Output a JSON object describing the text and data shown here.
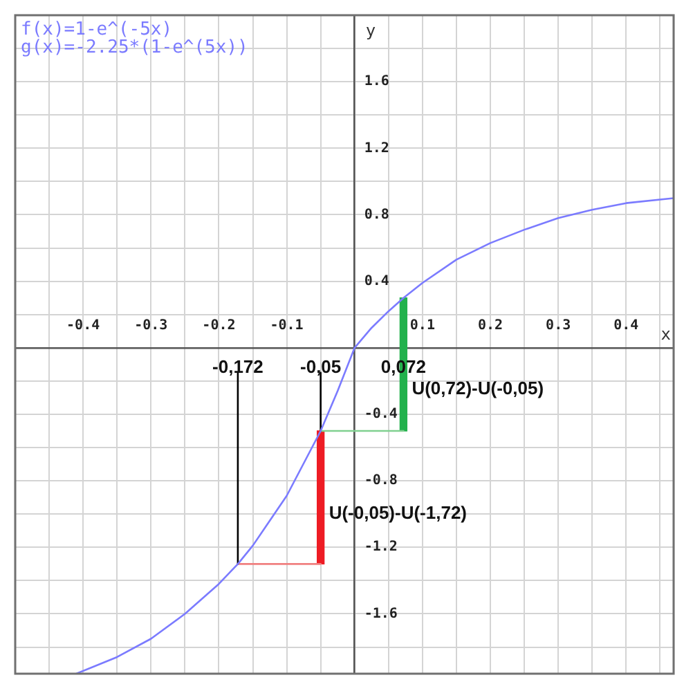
{
  "chart_data": {
    "type": "line",
    "xlabel": "x",
    "ylabel": "y",
    "annotations": [
      "f(x)=1-e^(-5x)",
      "g(x)=-2.25*(1-e^(5x))",
      {
        "text": "-0,172",
        "x": -0.172,
        "y": -0.12
      },
      {
        "text": "-0,05",
        "x": -0.05,
        "y": -0.12
      },
      {
        "text": "0,072",
        "x": 0.072,
        "y": -0.12
      },
      {
        "text": "U(0,72)-U(-0,05)",
        "x": 0.072,
        "y": -0.25
      },
      {
        "text": "U(-0,05)-U(-1,72)",
        "x": -0.05,
        "y": -1.0
      }
    ],
    "series": [
      {
        "color": "#7b7bff",
        "x": [
          -0.41,
          -0.35,
          -0.3,
          -0.25,
          -0.2,
          -0.172,
          -0.15,
          -0.1,
          -0.05,
          -0.025,
          0,
          0.025,
          0.05,
          0.072,
          0.1,
          0.15,
          0.2,
          0.25,
          0.3,
          0.35,
          0.4,
          0.47
        ],
        "values": [
          -1.96,
          -1.86,
          -1.75,
          -1.6,
          -1.42,
          -1.3,
          -1.19,
          -0.89,
          -0.5,
          -0.26,
          0,
          0.12,
          0.22,
          0.3,
          0.39,
          0.53,
          0.63,
          0.71,
          0.78,
          0.83,
          0.87,
          0.9
        ]
      },
      {
        "color": "#000000",
        "x": [
          -0.172,
          -0.172
        ],
        "values": [
          -0.15,
          -1.3
        ]
      },
      {
        "color": "#000000",
        "x": [
          -0.05,
          -0.05
        ],
        "values": [
          -0.15,
          -0.5
        ]
      },
      {
        "color": "#f08080",
        "x": [
          -0.172,
          -0.05
        ],
        "values": [
          -1.3,
          -1.3
        ]
      },
      {
        "color": "#80d090",
        "x": [
          -0.05,
          0.072
        ],
        "values": [
          -0.5,
          -0.5
        ]
      },
      {
        "type": "bar",
        "color": "#ee1c24",
        "x": [
          -0.05
        ],
        "base": [
          -1.3
        ],
        "values": [
          0.8
        ]
      },
      {
        "type": "bar",
        "color": "#22b14c",
        "x": [
          0.072
        ],
        "base": [
          -0.5
        ],
        "values": [
          0.8
        ]
      }
    ],
    "xlim": [
      -0.5,
      0.47
    ],
    "ylim": [
      -1.96,
      2.0
    ],
    "xticks": [
      {
        "value": -0.5,
        "label": null
      },
      {
        "value": -0.45,
        "label": null
      },
      -0.4,
      {
        "value": -0.35,
        "label": null
      },
      -0.3,
      {
        "value": -0.25,
        "label": null
      },
      -0.2,
      {
        "value": -0.15,
        "label": null
      },
      -0.1,
      {
        "value": -0.05,
        "label": null
      },
      {
        "value": 0,
        "label": null
      },
      {
        "value": 0.05,
        "label": null
      },
      0.1,
      {
        "value": 0.15,
        "label": null
      },
      0.2,
      {
        "value": 0.25,
        "label": null
      },
      0.3,
      {
        "value": 0.35,
        "label": null
      },
      0.4,
      {
        "value": 0.45,
        "label": null
      }
    ],
    "yticks": [
      {
        "value": -1.8,
        "label": null
      },
      -1.6,
      {
        "value": -1.4,
        "label": null
      },
      -1.2,
      {
        "value": -1.0,
        "label": null
      },
      -0.8,
      {
        "value": -0.6,
        "label": null
      },
      -0.4,
      {
        "value": -0.2,
        "label": null
      },
      {
        "value": 0,
        "label": null
      },
      {
        "value": 0.2,
        "label": null
      },
      0.4,
      {
        "value": 0.6,
        "label": null
      },
      0.8,
      {
        "value": 1.0,
        "label": null
      },
      1.2,
      {
        "value": 1.4,
        "label": null
      },
      1.6,
      {
        "value": 1.8,
        "label": null
      },
      {
        "value": 2.0,
        "label": null
      }
    ],
    "grid": true,
    "legend": false
  }
}
